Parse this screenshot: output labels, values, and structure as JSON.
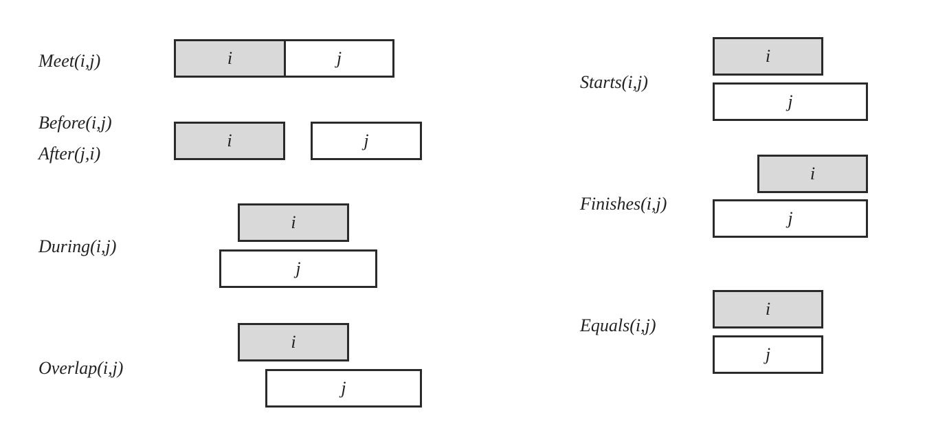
{
  "labels": {
    "meet": "Meet(i,j)",
    "before": "Before(i,j)",
    "after": "After(j,i)",
    "during": "During(i,j)",
    "overlap": "Overlap(i,j)",
    "starts": "Starts(i,j)",
    "finishes": "Finishes(i,j)",
    "equals": "Equals(i,j)"
  },
  "interval_i": "i",
  "interval_j": "j",
  "colors": {
    "interval_i_fill": "#d9d9d9",
    "interval_j_fill": "#ffffff",
    "stroke": "#2a2a2a"
  }
}
